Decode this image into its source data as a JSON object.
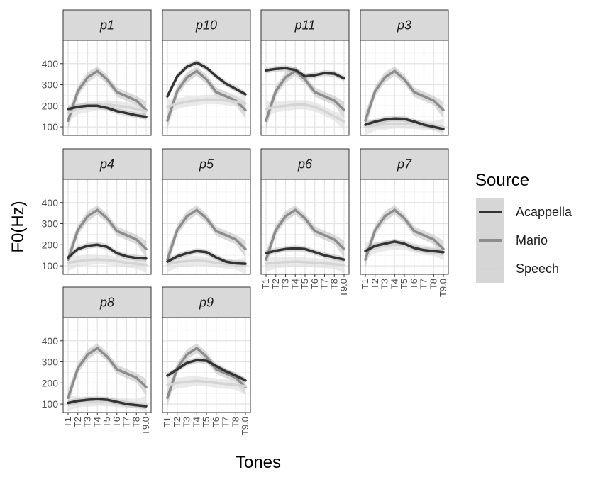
{
  "chart_data": {
    "type": "line",
    "xlabel": "Tones",
    "ylabel": "F0(Hz)",
    "x_categories": [
      "T1",
      "T2",
      "T3",
      "T4",
      "T5",
      "T6",
      "T7",
      "T8",
      "T9.0"
    ],
    "y_ticks": [
      100,
      200,
      300,
      400
    ],
    "ylim": [
      60,
      510
    ],
    "grid": true,
    "legend": {
      "title": "Source",
      "position": "right",
      "entries": [
        {
          "name": "Acappella",
          "color": "#333333"
        },
        {
          "name": "Mario",
          "color": "#8c8c8c"
        },
        {
          "name": "Speech",
          "color": "#d4d4d4"
        }
      ]
    },
    "mario_reference": [
      130,
      270,
      335,
      365,
      325,
      265,
      245,
      225,
      180
    ],
    "panels": [
      {
        "label": "p1",
        "acappella": [
          185,
          195,
          200,
          200,
          190,
          175,
          165,
          155,
          148
        ],
        "speech": [
          165,
          185,
          195,
          200,
          205,
          200,
          195,
          185,
          175
        ]
      },
      {
        "label": "p10",
        "acappella": [
          245,
          340,
          385,
          405,
          380,
          340,
          305,
          280,
          255
        ],
        "speech": [
          195,
          210,
          220,
          225,
          230,
          230,
          225,
          220,
          210
        ]
      },
      {
        "label": "p11",
        "acappella": [
          368,
          375,
          378,
          370,
          340,
          345,
          355,
          352,
          330
        ],
        "speech": [
          185,
          195,
          200,
          205,
          205,
          195,
          175,
          150,
          125
        ]
      },
      {
        "label": "p3",
        "acappella": [
          110,
          125,
          135,
          140,
          138,
          125,
          110,
          100,
          90
        ],
        "speech": [
          100,
          108,
          112,
          115,
          115,
          112,
          108,
          105,
          100
        ]
      },
      {
        "label": "p4",
        "acappella": [
          140,
          180,
          195,
          200,
          190,
          160,
          145,
          138,
          135
        ],
        "speech": [
          115,
          122,
          128,
          130,
          128,
          122,
          115,
          110,
          105
        ]
      },
      {
        "label": "p5",
        "acappella": [
          120,
          145,
          160,
          170,
          165,
          140,
          120,
          112,
          110
        ],
        "speech": [
          108,
          118,
          122,
          125,
          122,
          115,
          110,
          105,
          100
        ]
      },
      {
        "label": "p6",
        "acappella": [
          160,
          172,
          180,
          183,
          180,
          165,
          150,
          140,
          130
        ],
        "speech": [
          110,
          115,
          118,
          120,
          118,
          115,
          112,
          108,
          105
        ]
      },
      {
        "label": "p7",
        "acappella": [
          170,
          195,
          205,
          215,
          205,
          185,
          175,
          170,
          165
        ],
        "speech": [
          175,
          185,
          195,
          200,
          198,
          185,
          175,
          170,
          168
        ]
      },
      {
        "label": "p8",
        "acappella": [
          105,
          115,
          120,
          123,
          120,
          110,
          100,
          95,
          90
        ],
        "speech": [
          105,
          110,
          112,
          113,
          112,
          108,
          105,
          102,
          100
        ]
      },
      {
        "label": "p9",
        "acappella": [
          235,
          265,
          295,
          308,
          305,
          280,
          255,
          235,
          212
        ],
        "speech": [
          190,
          200,
          205,
          210,
          205,
          200,
          195,
          190,
          185
        ]
      }
    ]
  }
}
